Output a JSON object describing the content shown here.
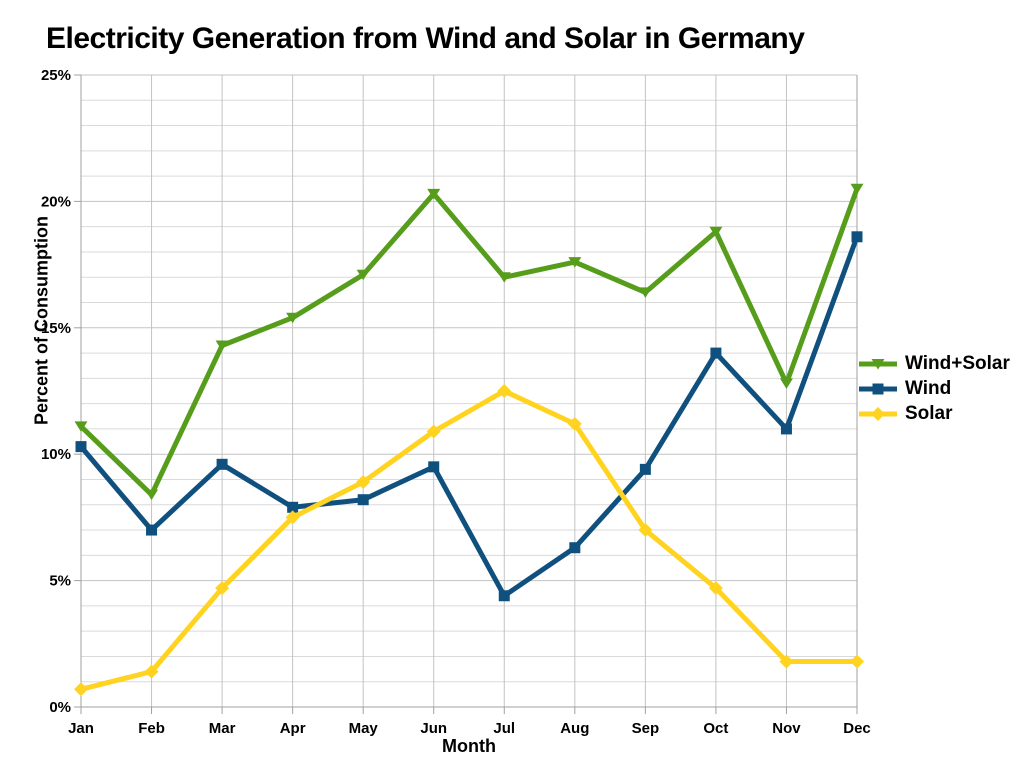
{
  "chart_data": {
    "type": "line",
    "title": "Electricity Generation from Wind and Solar in Germany",
    "xlabel": "Month",
    "ylabel": "Percent of Consumption",
    "categories": [
      "Jan",
      "Feb",
      "Mar",
      "Apr",
      "May",
      "Jun",
      "Jul",
      "Aug",
      "Sep",
      "Oct",
      "Nov",
      "Dec"
    ],
    "y_axis": {
      "min": 0,
      "max": 25,
      "major_step": 5,
      "minor_step": 1,
      "tick_labels": [
        "0%",
        "5%",
        "10%",
        "15%",
        "20%",
        "25%"
      ]
    },
    "grid": true,
    "legend_position": "right",
    "series": [
      {
        "name": "Wind+Solar",
        "color": "#579D1C",
        "marker": "triangle-down",
        "values": [
          11.1,
          8.4,
          14.3,
          15.4,
          17.1,
          20.3,
          17.0,
          17.6,
          16.4,
          18.8,
          12.8,
          20.5
        ]
      },
      {
        "name": "Wind",
        "color": "#10507E",
        "marker": "square",
        "values": [
          10.3,
          7.0,
          9.6,
          7.9,
          8.2,
          9.5,
          4.4,
          6.3,
          9.4,
          14.0,
          11.0,
          18.6
        ]
      },
      {
        "name": "Solar",
        "color": "#FFD320",
        "marker": "diamond",
        "values": [
          0.7,
          1.4,
          4.7,
          7.5,
          8.9,
          10.9,
          12.5,
          11.2,
          7.0,
          4.7,
          1.8,
          1.8
        ]
      }
    ]
  },
  "colors": {
    "axis": "#a0a0a0",
    "grid_major": "#c3c3c3",
    "grid_minor": "#dadada",
    "text": "#000000"
  }
}
